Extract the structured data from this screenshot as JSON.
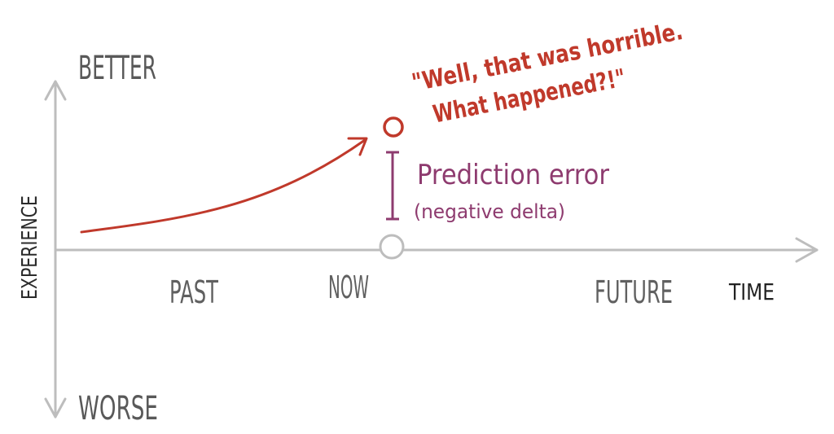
{
  "diagram": {
    "y_axis": {
      "top_label": "BETTER",
      "bottom_label": "WORSE",
      "title": "EXPERIENCE"
    },
    "x_axis": {
      "tick_labels": [
        "PAST",
        "NOW",
        "FUTURE"
      ],
      "title": "TIME"
    },
    "quote": {
      "line1": "\"Well, that was horrible.",
      "line2": "What happened?!\""
    },
    "prediction": {
      "label": "Prediction error",
      "sublabel": "(negative delta)"
    },
    "colors": {
      "axis": "#bdbdbd",
      "curve": "#c0392b",
      "prediction": "#8e3b6f",
      "text_gray": "#595959"
    }
  }
}
